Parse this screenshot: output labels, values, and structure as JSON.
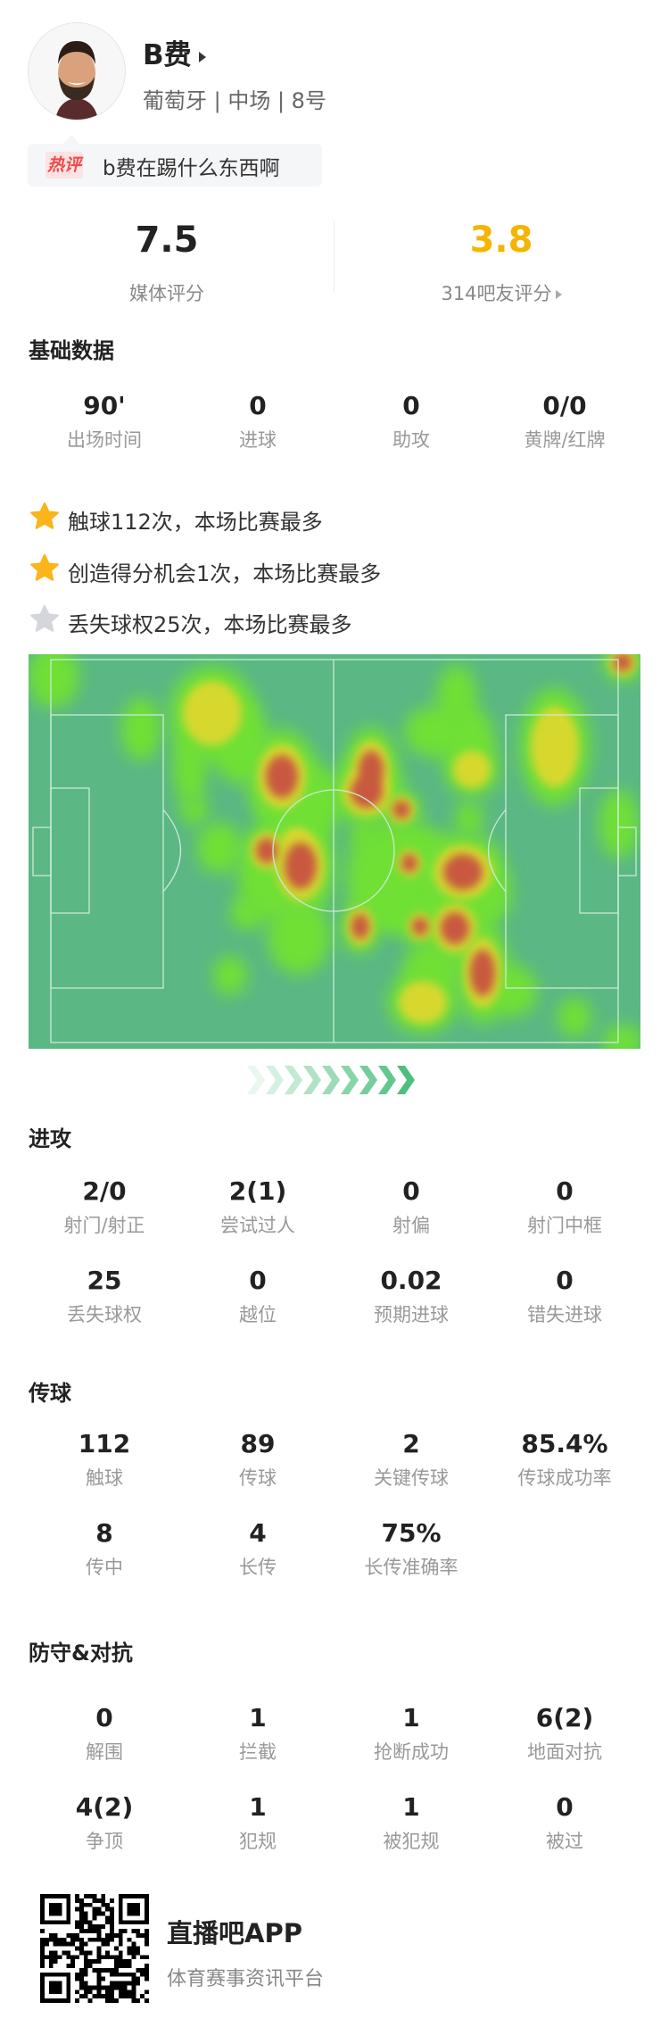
{
  "player": {
    "name": "B费",
    "subtitle": "葡萄牙 | 中场 | 8号"
  },
  "hot_comment": {
    "tag": "热评",
    "text": "b费在踢什么东西啊"
  },
  "ratings": {
    "media": {
      "value": "7.5",
      "label": "媒体评分"
    },
    "fans": {
      "value": "3.8",
      "label": "314吧友评分",
      "color": "#f5b400"
    }
  },
  "basic": {
    "title": "基础数据",
    "stats": [
      {
        "value": "90'",
        "label": "出场时间"
      },
      {
        "value": "0",
        "label": "进球"
      },
      {
        "value": "0",
        "label": "助攻"
      },
      {
        "value": "0/0",
        "label": "黄牌/红牌"
      }
    ]
  },
  "highlights": [
    {
      "text": "触球112次，本场比赛最多",
      "star": "gold"
    },
    {
      "text": "创造得分机会1次，本场比赛最多",
      "star": "gold"
    },
    {
      "text": "丢失球权25次，本场比赛最多",
      "star": "silver"
    }
  ],
  "attack": {
    "title": "进攻",
    "stats": [
      {
        "value": "2/0",
        "label": "射门/射正"
      },
      {
        "value": "2(1)",
        "label": "尝试过人"
      },
      {
        "value": "0",
        "label": "射偏"
      },
      {
        "value": "0",
        "label": "射门中框"
      },
      {
        "value": "25",
        "label": "丢失球权"
      },
      {
        "value": "0",
        "label": "越位"
      },
      {
        "value": "0.02",
        "label": "预期进球"
      },
      {
        "value": "0",
        "label": "错失进球"
      }
    ]
  },
  "passing": {
    "title": "传球",
    "stats": [
      {
        "value": "112",
        "label": "触球"
      },
      {
        "value": "89",
        "label": "传球"
      },
      {
        "value": "2",
        "label": "关键传球"
      },
      {
        "value": "85.4%",
        "label": "传球成功率"
      },
      {
        "value": "8",
        "label": "传中"
      },
      {
        "value": "4",
        "label": "长传"
      },
      {
        "value": "75%",
        "label": "长传准确率"
      }
    ]
  },
  "defense": {
    "title": "防守&对抗",
    "stats": [
      {
        "value": "0",
        "label": "解围"
      },
      {
        "value": "1",
        "label": "拦截"
      },
      {
        "value": "1",
        "label": "抢断成功"
      },
      {
        "value": "6(2)",
        "label": "地面对抗"
      },
      {
        "value": "4(2)",
        "label": "争顶"
      },
      {
        "value": "1",
        "label": "犯规"
      },
      {
        "value": "1",
        "label": "被犯规"
      },
      {
        "value": "0",
        "label": "被过"
      }
    ]
  },
  "footer": {
    "app_name": "直播吧APP",
    "slogan": "体育赛事资讯平台"
  },
  "colors": {
    "pitch": "#5bb784",
    "accent_green": "#4fbf7f",
    "gold_star": "#fbb41a",
    "silver_star": "#d4d6dc",
    "hot_red": "#ef4a4a"
  }
}
